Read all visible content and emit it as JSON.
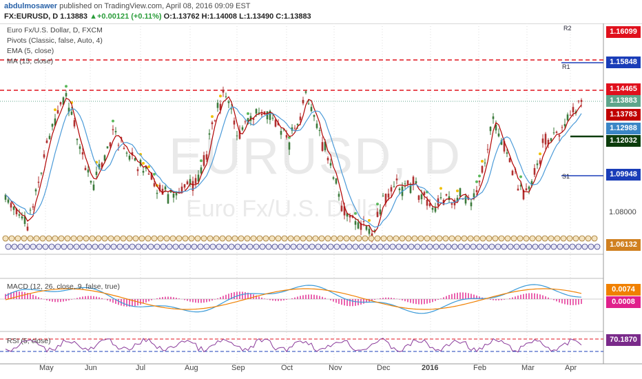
{
  "header": {
    "user": "abdulmosawer",
    "published": "published on TradingView.com, April 08, 2016 09:09 EST",
    "symbol": "FX:EURUSD, D 1.13883",
    "change": "▲+0.00121 (+0.11%)",
    "ohlc": "O:1.13762 H:1.14008 L:1.13490 C:1.13883"
  },
  "legend": {
    "title": "Euro Fx/U.S. Dollar, D, FXCM",
    "pivots": "Pivots (Classic, false, Auto, 4)",
    "ema": "EMA (5, close)",
    "ma": "MA (15, close)",
    "macd": "MACD (12, 26, close, 9, false, true)",
    "rsi": "RSI (5, close)"
  },
  "watermark": {
    "symbol": "EURUSD, D",
    "name": "Euro Fx/U.S. Dolla"
  },
  "price_labels": [
    {
      "value": "1.16099",
      "color": "#e0101c"
    },
    {
      "value": "1.15848",
      "color": "#1a3db8"
    },
    {
      "value": "1.14465",
      "color": "#e0101c"
    },
    {
      "value": "1.13883",
      "color": "#5ea58b"
    },
    {
      "value": "1.13783",
      "color": "#c00000"
    },
    {
      "value": "1.12988",
      "color": "#3b86c6"
    },
    {
      "value": "1.12032",
      "color": "#0c3c0c"
    },
    {
      "value": "1.09948",
      "color": "#1a3db8"
    },
    {
      "value": "1.06132",
      "color": "#d08020"
    }
  ],
  "axis_labels": {
    "p108": "1.08000"
  },
  "pivot_names": {
    "r2": "R2",
    "r1": "R1",
    "s1": "S1"
  },
  "macd_labels": [
    {
      "value": "0.0074",
      "color": "#f08000"
    },
    {
      "value": "0.0008",
      "color": "#e0208c"
    }
  ],
  "rsi_label": {
    "value": "70.1870",
    "color": "#7a2a8a"
  },
  "months": [
    "May",
    "Jun",
    "Jul",
    "Aug",
    "Sep",
    "Oct",
    "Nov",
    "Dec",
    "2016",
    "Feb",
    "Mar",
    "Apr"
  ],
  "colors": {
    "bull": "#3a7a3a",
    "bear": "#b03030",
    "ema": "#b00000",
    "ma": "#4a9ad8",
    "grid": "#dcdcdc"
  }
}
